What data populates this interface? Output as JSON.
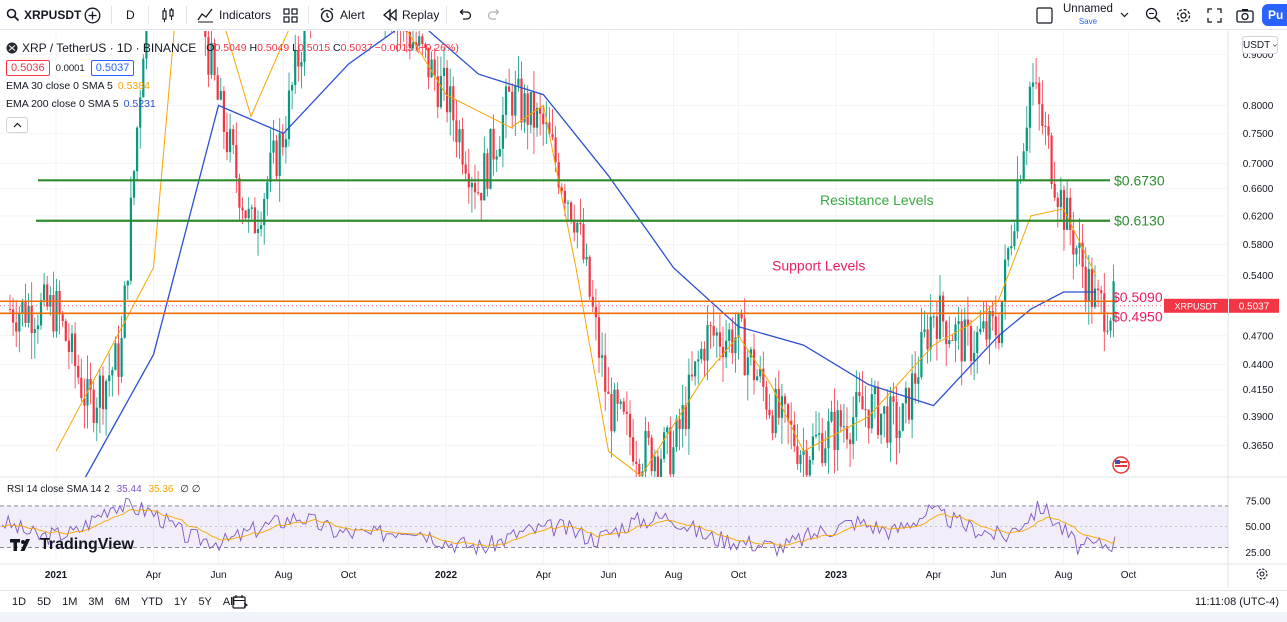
{
  "toolbar": {
    "symbol": "XRPUSDT",
    "interval": "D",
    "indicators_label": "Indicators",
    "alert_label": "Alert",
    "replay_label": "Replay",
    "layout_name": "Unnamed",
    "save_label": "Save",
    "publish_label": "Pu"
  },
  "legend": {
    "title": "XRP / TetherUS · 1D · BINANCE",
    "open": "0.5049",
    "high": "0.5049",
    "low": "0.5015",
    "close": "0.5037",
    "change": "−0.0013 (−0.26%)",
    "bid": "0.5036",
    "spread": "0.0001",
    "ask": "0.5037",
    "ema30_label": "EMA 30 close 0 SMA 5",
    "ema30_value": "0.5384",
    "ema200_label": "EMA 200 close 0 SMA 5",
    "ema200_value": "0.5231",
    "rsi_label": "RSI 14 close SMA 14 2",
    "rsi_value": "35.44",
    "rsi_sma_value": "35.36",
    "rsi_extra": "∅ ∅",
    "brand": "TradingView"
  },
  "currency_button": "USDT",
  "price_tag": {
    "symbol": "XRPUSDT",
    "value": "0.5037"
  },
  "colors": {
    "up": "#089981",
    "down": "#f23645",
    "ema30": "#f7a600",
    "ema200": "#2c50d0",
    "resistance": "#2e8b2e",
    "support": "#ef6c00",
    "support_text": "#e91e63",
    "rsi": "#7e57c2"
  },
  "chart_data": {
    "type": "line",
    "symbol": "XRP / TetherUS",
    "interval": "1D",
    "exchange": "BINANCE",
    "ylim": [
      0.34,
      0.95
    ],
    "price_scale_log": true,
    "yticks": [
      "0.9000",
      "0.8000",
      "0.7500",
      "0.7000",
      "0.6600",
      "0.6200",
      "0.5800",
      "0.5400",
      "0.4700",
      "0.4400",
      "0.4150",
      "0.3900",
      "0.3650"
    ],
    "xticks": [
      "2021",
      "Apr",
      "Jun",
      "Aug",
      "Oct",
      "2022",
      "Apr",
      "Jun",
      "Aug",
      "Oct",
      "2023",
      "Apr",
      "Jun",
      "Aug",
      "Oct"
    ],
    "resistance_label": "Resistance Levels",
    "support_label": "Support Levels",
    "resistance_levels": [
      {
        "value": 0.673,
        "label": "$0.6730"
      },
      {
        "value": 0.613,
        "label": "$0.6130"
      }
    ],
    "support_levels": [
      {
        "value": 0.509,
        "label": "$0.5090"
      },
      {
        "value": 0.495,
        "label": "$0.4950"
      }
    ],
    "series": [
      {
        "name": "EMA 30",
        "x": [
          "2021-01",
          "2021-04",
          "2021-05",
          "2021-07",
          "2021-09",
          "2021-11",
          "2022-01",
          "2022-03",
          "2022-04",
          "2022-05",
          "2022-06",
          "2022-07",
          "2022-09",
          "2022-10",
          "2022-11",
          "2022-12",
          "2023-02",
          "2023-04",
          "2023-05",
          "2023-06",
          "2023-07",
          "2023-08",
          "2023-09"
        ],
        "values": [
          0.36,
          0.55,
          1.3,
          0.78,
          1.1,
          1.05,
          0.82,
          0.76,
          0.8,
          0.55,
          0.36,
          0.34,
          0.43,
          0.47,
          0.42,
          0.36,
          0.39,
          0.46,
          0.48,
          0.51,
          0.62,
          0.63,
          0.54
        ]
      },
      {
        "name": "EMA 200",
        "x": [
          "2021-01",
          "2021-04",
          "2021-06",
          "2021-08",
          "2021-10",
          "2021-12",
          "2022-02",
          "2022-04",
          "2022-06",
          "2022-08",
          "2022-10",
          "2022-12",
          "2023-02",
          "2023-04",
          "2023-06",
          "2023-07",
          "2023-08",
          "2023-09"
        ],
        "values": [
          0.3,
          0.45,
          0.8,
          0.75,
          0.88,
          0.98,
          0.86,
          0.82,
          0.68,
          0.55,
          0.48,
          0.46,
          0.42,
          0.4,
          0.47,
          0.5,
          0.52,
          0.52
        ]
      },
      {
        "name": "Close",
        "x": [
          "2021-01",
          "2021-02",
          "2021-03",
          "2021-04",
          "2021-05",
          "2021-06",
          "2021-07",
          "2021-08",
          "2021-09",
          "2021-11",
          "2022-01",
          "2022-02",
          "2022-03",
          "2022-04",
          "2022-05",
          "2022-06",
          "2022-07",
          "2022-08",
          "2022-09",
          "2022-10",
          "2022-11",
          "2022-12",
          "2023-01",
          "2023-02",
          "2023-03",
          "2023-04",
          "2023-05",
          "2023-06",
          "2023-07",
          "2023-08",
          "2023-09"
        ],
        "values": [
          0.5,
          0.4,
          0.45,
          1.3,
          1.2,
          0.8,
          0.6,
          0.75,
          1.1,
          1.05,
          0.82,
          0.66,
          0.82,
          0.76,
          0.62,
          0.4,
          0.36,
          0.36,
          0.47,
          0.47,
          0.4,
          0.36,
          0.38,
          0.4,
          0.38,
          0.5,
          0.46,
          0.48,
          0.85,
          0.63,
          0.5037
        ]
      }
    ]
  },
  "rsi": {
    "levels": [
      "75.00",
      "50.00",
      "25.00"
    ],
    "upper_band": 70,
    "lower_band": 30,
    "values": [
      55,
      40,
      45,
      72,
      65,
      40,
      35,
      50,
      60,
      45,
      42,
      50,
      35,
      30,
      45,
      50,
      38,
      55,
      60,
      40,
      35,
      30,
      45,
      55,
      45,
      65,
      50,
      40,
      70,
      30,
      35
    ]
  },
  "bottom": {
    "ranges": [
      "1D",
      "5D",
      "1M",
      "3M",
      "6M",
      "YTD",
      "1Y",
      "5Y",
      "All"
    ],
    "clock": "11:11:08 (UTC-4)"
  }
}
